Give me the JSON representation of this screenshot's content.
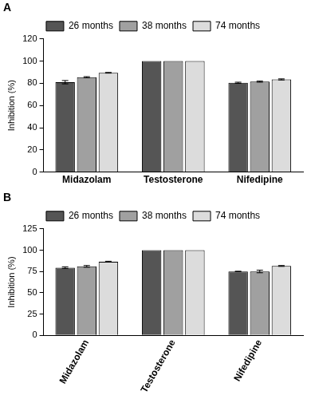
{
  "chart_data": [
    {
      "type": "bar",
      "title": "A",
      "y_label": "Inhibition (%)",
      "categories": [
        "Midazolam",
        "Testosterone",
        "Nifedipine"
      ],
      "series": [
        {
          "name": "26 months",
          "color": "#555555",
          "values": [
            81,
            100,
            80.5
          ],
          "errors": [
            1.5,
            0,
            0.5
          ]
        },
        {
          "name": "38 months",
          "color": "#a0a0a0",
          "values": [
            85.5,
            100,
            81.5
          ],
          "errors": [
            0.5,
            0,
            0.5
          ]
        },
        {
          "name": "74 months",
          "color": "#dcdcdc",
          "values": [
            89.5,
            100,
            83.5
          ],
          "errors": [
            0.3,
            0,
            0.5
          ]
        }
      ],
      "ylim": [
        0,
        120
      ],
      "yticks": [
        0,
        20,
        40,
        60,
        80,
        100,
        120
      ],
      "grid": false,
      "legend": "top"
    },
    {
      "type": "bar",
      "title": "B",
      "y_label": "Inhibition (%)",
      "categories": [
        "Midazolam",
        "Testosterone",
        "Nifedipine"
      ],
      "series": [
        {
          "name": "26 months",
          "color": "#555555",
          "values": [
            79.5,
            100,
            75
          ],
          "errors": [
            1,
            0,
            0.3
          ]
        },
        {
          "name": "38 months",
          "color": "#a0a0a0",
          "values": [
            81,
            100,
            75
          ],
          "errors": [
            1,
            0,
            1.5
          ]
        },
        {
          "name": "74 months",
          "color": "#dcdcdc",
          "values": [
            86.5,
            100,
            81.5
          ],
          "errors": [
            0.5,
            0,
            0.5
          ]
        }
      ],
      "ylim": [
        0,
        125
      ],
      "yticks": [
        0,
        25,
        50,
        75,
        100,
        125
      ],
      "grid": false,
      "legend": "top"
    }
  ]
}
